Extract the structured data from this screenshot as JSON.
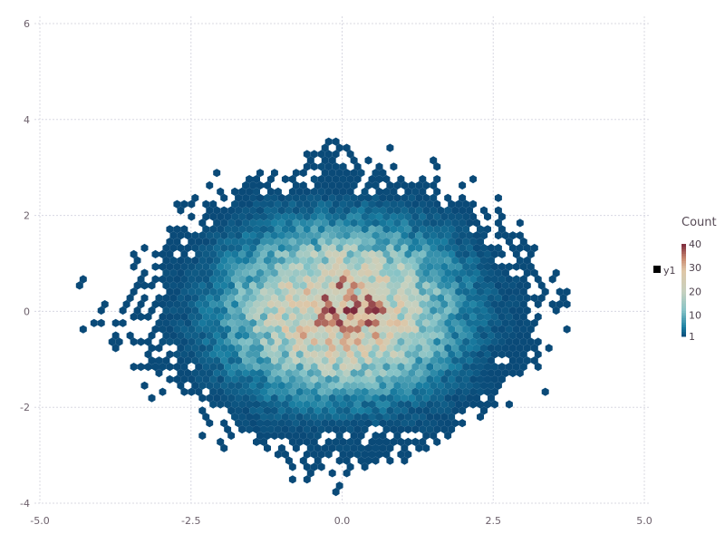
{
  "chart_data": {
    "type": "heatmap",
    "subtype": "hexbin",
    "title": "",
    "xlabel": "",
    "ylabel": "",
    "xlim": [
      -5,
      5
    ],
    "ylim": [
      -4,
      6
    ],
    "grid": true,
    "x_ticks": [
      "-5.0",
      "-2.5",
      "0.0",
      "2.5",
      "5.0"
    ],
    "x_tick_values": [
      -5,
      -2.5,
      0,
      2.5,
      5
    ],
    "y_ticks": [
      "-4",
      "-2",
      "0",
      "2",
      "4",
      "6"
    ],
    "y_tick_values": [
      -4,
      -2,
      0,
      2,
      4,
      6
    ],
    "series_key": {
      "label": "y1",
      "color": "#000000"
    },
    "colorbar": {
      "title": "Count",
      "ticks": [
        "1",
        "10",
        "20",
        "30",
        "40"
      ],
      "tick_values": [
        1,
        10,
        20,
        30,
        40
      ],
      "range": [
        1,
        40
      ],
      "colors": [
        "#0a4a78",
        "#1a7fa2",
        "#86c3c6",
        "#c6d1bf",
        "#dfc6a6",
        "#c98a70",
        "#7d2a3c"
      ],
      "legend_placement": "right"
    },
    "density_grid": {
      "x_centers": [
        -4,
        -3.5,
        -3,
        -2.5,
        -2,
        -1.5,
        -1,
        -0.5,
        0,
        0.5,
        1,
        1.5,
        2,
        2.5,
        3,
        3.5
      ],
      "y_centers": [
        3.5,
        3,
        2.5,
        2,
        1.5,
        1,
        0.5,
        0,
        -0.5,
        -1,
        -1.5,
        -2,
        -2.5,
        -3,
        -3.5
      ],
      "counts": [
        [
          0,
          0,
          0,
          0,
          0,
          0,
          0,
          0,
          0.4,
          0,
          0,
          0,
          0,
          0,
          0,
          0
        ],
        [
          0,
          0,
          0,
          0,
          0,
          0,
          0.3,
          1,
          1,
          1,
          0.4,
          0.2,
          0,
          0,
          0,
          0
        ],
        [
          0,
          0,
          0,
          0,
          0.3,
          1,
          1,
          1,
          1,
          1,
          1,
          1,
          0.3,
          0,
          0,
          0
        ],
        [
          0,
          0,
          0,
          0.4,
          1,
          2,
          3,
          4,
          4,
          4,
          3,
          2,
          1,
          0.4,
          0,
          0
        ],
        [
          0,
          0,
          0.3,
          1,
          2,
          4,
          7,
          9,
          10,
          9,
          7,
          4,
          2,
          1,
          0.3,
          0
        ],
        [
          0,
          0.2,
          1,
          1,
          4,
          8,
          13,
          18,
          20,
          18,
          13,
          8,
          4,
          1,
          1,
          0.2
        ],
        [
          0.2,
          0.4,
          1,
          2,
          5,
          11,
          19,
          25,
          28,
          25,
          19,
          11,
          5,
          2,
          1,
          0.4
        ],
        [
          0.5,
          0.3,
          1,
          2,
          6,
          12,
          21,
          29,
          32,
          29,
          21,
          12,
          6,
          2,
          1,
          0.5
        ],
        [
          0.2,
          0.4,
          1,
          2,
          5,
          11,
          19,
          25,
          28,
          25,
          19,
          11,
          5,
          2,
          1,
          0.4
        ],
        [
          0,
          0.2,
          1,
          1,
          4,
          8,
          13,
          18,
          20,
          18,
          13,
          8,
          4,
          1,
          1,
          0.2
        ],
        [
          0,
          0,
          0.3,
          1,
          2,
          4,
          7,
          9,
          10,
          9,
          7,
          4,
          2,
          1,
          0.3,
          0
        ],
        [
          0,
          0,
          0,
          0.4,
          1,
          2,
          3,
          4,
          4,
          4,
          3,
          2,
          1,
          0.4,
          0,
          0
        ],
        [
          0,
          0,
          0,
          0,
          0.3,
          1,
          1,
          1,
          1,
          1,
          1,
          1,
          0.3,
          0,
          0,
          0
        ],
        [
          0,
          0,
          0,
          0,
          0,
          0,
          0.3,
          1,
          1,
          1,
          0.4,
          0,
          0,
          0,
          0,
          0
        ],
        [
          0,
          0,
          0,
          0,
          0,
          0,
          0,
          0.3,
          0.3,
          0,
          0,
          0,
          0,
          0,
          0,
          0
        ]
      ]
    }
  }
}
